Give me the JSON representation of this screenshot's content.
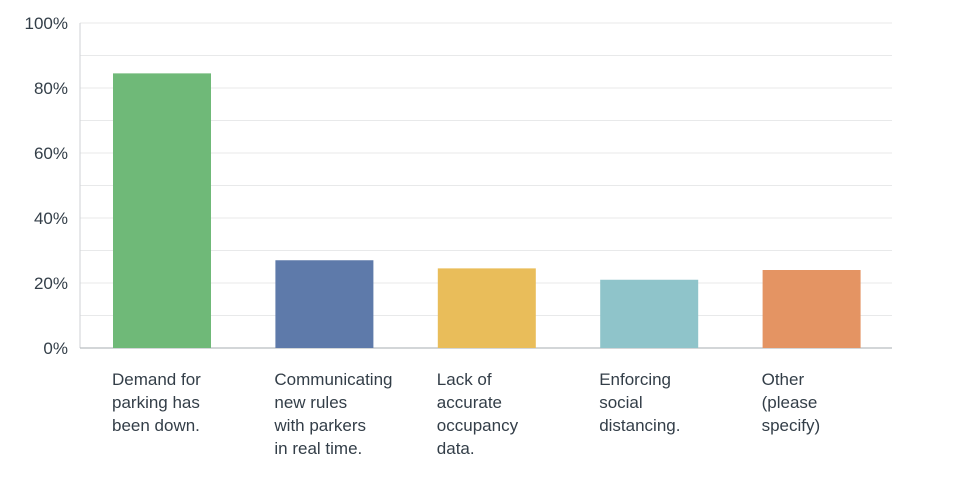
{
  "chart_data": {
    "type": "bar",
    "categories": [
      [
        "Demand for",
        "parking has",
        "been down."
      ],
      [
        "Communicating",
        "new rules",
        "with parkers",
        "in real time."
      ],
      [
        "Lack of",
        "accurate",
        "occupancy",
        "data."
      ],
      [
        "Enforcing",
        "social",
        "distancing."
      ],
      [
        "Other",
        "(please",
        "specify)"
      ]
    ],
    "values": [
      84.5,
      27,
      24.5,
      21,
      24
    ],
    "colors": [
      "#6fb978",
      "#5e7aaa",
      "#e9bd5a",
      "#8fc4ca",
      "#e49463"
    ],
    "ylim": [
      0,
      100
    ],
    "yticks": [
      "0%",
      "20%",
      "40%",
      "60%",
      "80%",
      "100%"
    ],
    "ytick_values": [
      0,
      20,
      40,
      60,
      80,
      100
    ],
    "grid": true,
    "legend": "none"
  }
}
